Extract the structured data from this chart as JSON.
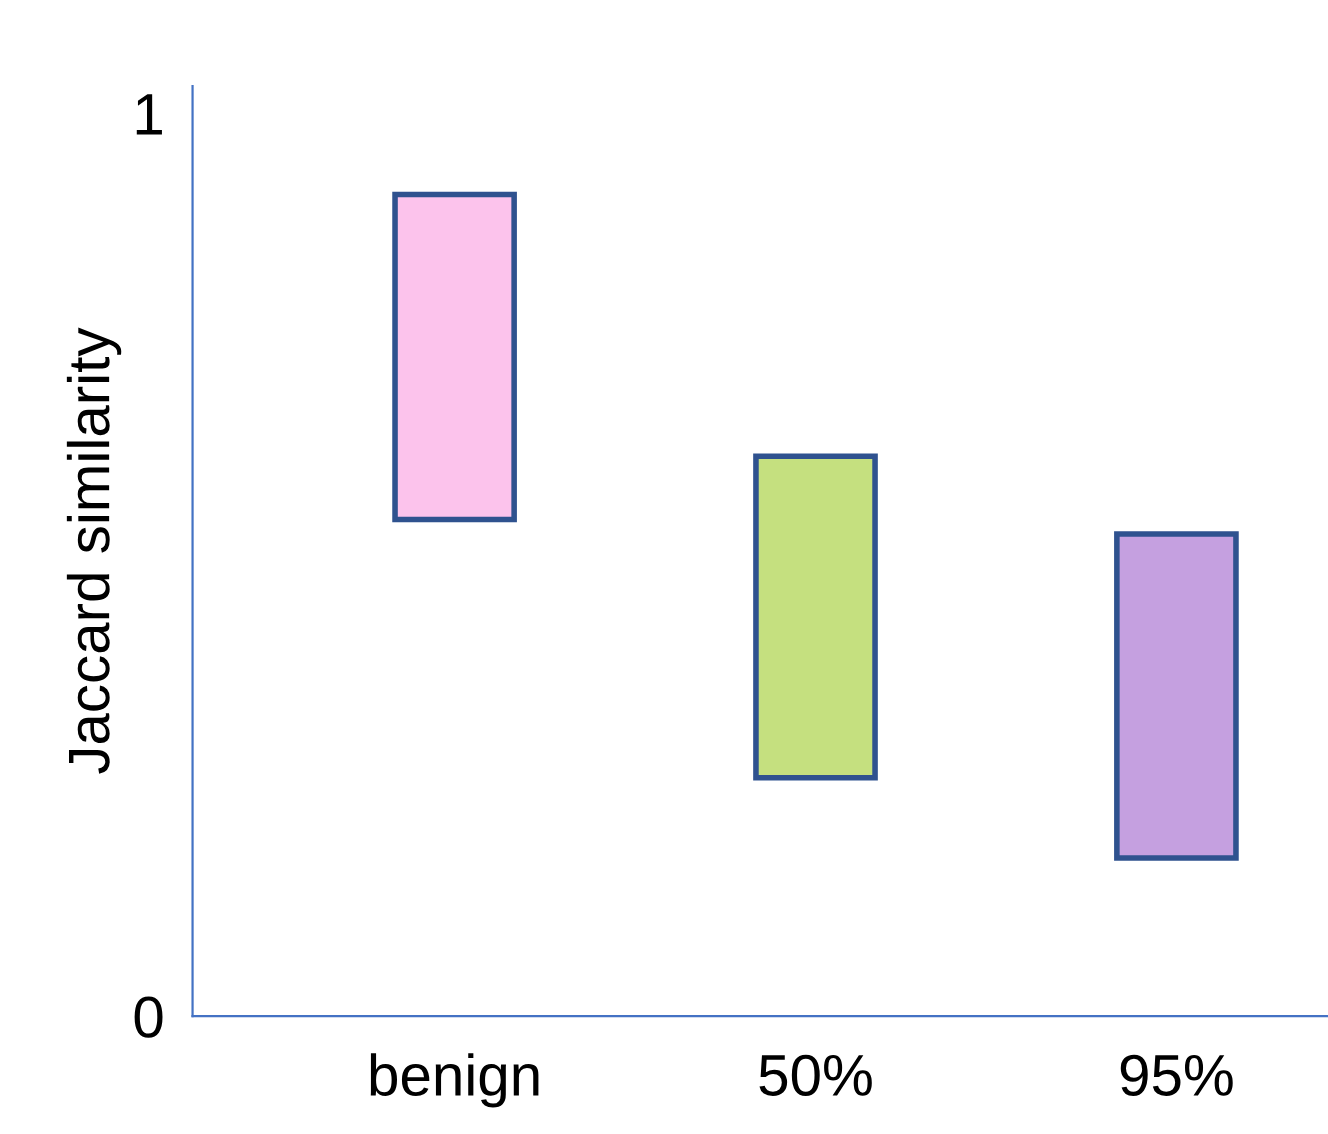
{
  "chart_data": {
    "type": "bar",
    "ylabel": "Jaccard similarity",
    "categories": [
      "benign",
      "50%",
      "95%"
    ],
    "base": [
      0.55,
      0.264,
      0.175
    ],
    "values": [
      0.36,
      0.356,
      0.359
    ],
    "colors": [
      "#fcc3ec",
      "#c5e07f",
      "#c5a0e0"
    ],
    "ylim": [
      0,
      1.03
    ],
    "yticks": [
      0,
      1
    ],
    "grid": false,
    "legend": false
  }
}
